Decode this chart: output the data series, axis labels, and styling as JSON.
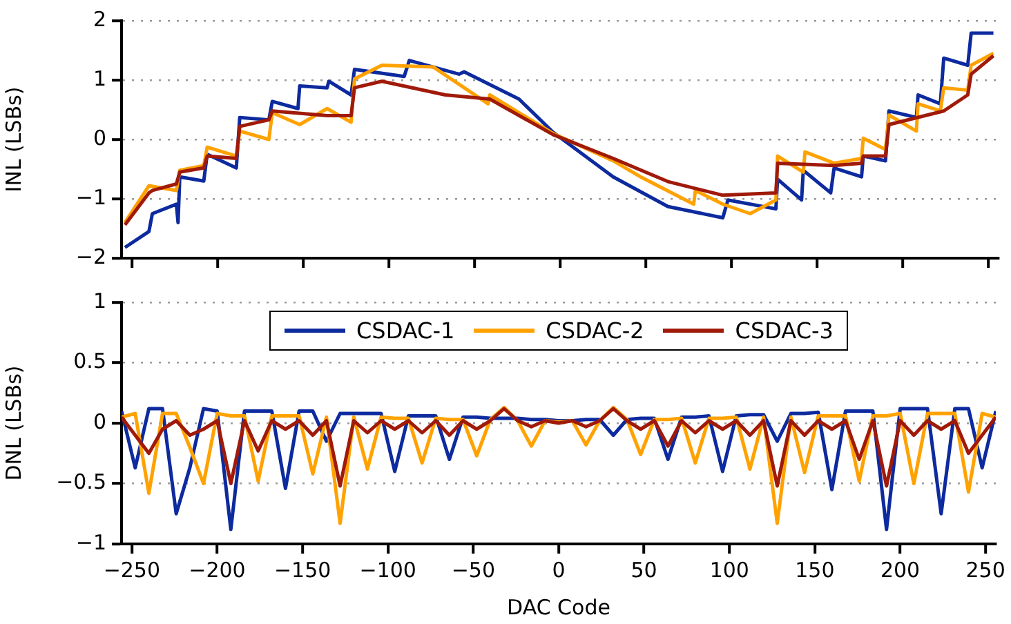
{
  "chart_data": [
    {
      "type": "line",
      "ylabel": "INL (LSBs)",
      "xlim": [
        -256,
        256
      ],
      "xticks": [
        -250,
        -200,
        -150,
        -100,
        -50,
        0,
        50,
        100,
        150,
        200,
        250
      ],
      "ylim": [
        -2,
        2
      ],
      "yticks": [
        -2,
        -1,
        0,
        1,
        2
      ],
      "grid": "y",
      "tick_labels": "y",
      "marker": "none",
      "series": [
        {
          "color": "#0d2a9e",
          "x": [
            -254,
            -240,
            -238,
            -224,
            -223,
            -222,
            -208,
            -206,
            -189,
            -187,
            -170,
            -168,
            -153,
            -152,
            -136,
            -135,
            -122,
            -120,
            -91,
            -88,
            -59,
            -56,
            -24,
            -4,
            31,
            63,
            95,
            98,
            126,
            127,
            141,
            142,
            158,
            160,
            176,
            177,
            190,
            192,
            208,
            209,
            222,
            224,
            238,
            240,
            253
          ],
          "values": [
            -1.82,
            -1.55,
            -1.25,
            -1.09,
            -1.4,
            -0.63,
            -0.7,
            -0.25,
            -0.48,
            0.37,
            0.33,
            0.64,
            0.52,
            0.9,
            0.87,
            0.98,
            0.75,
            1.18,
            1.06,
            1.33,
            1.1,
            1.14,
            0.68,
            0.12,
            -0.63,
            -1.13,
            -1.32,
            -1.02,
            -1.17,
            -0.67,
            -1.02,
            -0.52,
            -0.9,
            -0.48,
            -0.63,
            -0.28,
            -0.36,
            0.48,
            0.37,
            0.75,
            0.6,
            1.37,
            1.25,
            1.79,
            1.79
          ]
        },
        {
          "color": "#ffa200",
          "x": [
            -254,
            -240,
            -224,
            -222,
            -208,
            -206,
            -189,
            -187,
            -170,
            -168,
            -152,
            -136,
            -122,
            -120,
            -104,
            -74,
            -42,
            -41,
            -4,
            31,
            47,
            78,
            79,
            95,
            111,
            126,
            127,
            142,
            143,
            160,
            176,
            177,
            190,
            192,
            208,
            209,
            222,
            224,
            238,
            240,
            253
          ],
          "values": [
            -1.4,
            -0.78,
            -0.86,
            -0.52,
            -0.44,
            -0.13,
            -0.28,
            0.14,
            0,
            0.45,
            0.25,
            0.52,
            0.29,
            1.02,
            1.25,
            1.22,
            0.6,
            0.75,
            0.1,
            -0.36,
            -0.63,
            -1.09,
            -0.86,
            -1.09,
            -1.25,
            -1.02,
            -0.28,
            -0.55,
            -0.21,
            -0.4,
            -0.32,
            0.02,
            -0.17,
            0.41,
            0.14,
            0.6,
            0.48,
            0.87,
            0.83,
            1.25,
            1.45
          ]
        },
        {
          "color": "#a01a0a",
          "x": [
            -254,
            -240,
            -238,
            -224,
            -222,
            -208,
            -206,
            -189,
            -187,
            -170,
            -168,
            -136,
            -122,
            -120,
            -104,
            -67,
            -41,
            -4,
            31,
            63,
            95,
            126,
            127,
            160,
            176,
            177,
            190,
            192,
            224,
            238,
            240,
            253
          ],
          "values": [
            -1.44,
            -0.9,
            -0.86,
            -0.75,
            -0.55,
            -0.48,
            -0.28,
            -0.32,
            0.22,
            0.33,
            0.48,
            0.4,
            0.4,
            0.87,
            0.98,
            0.75,
            0.68,
            0.08,
            -0.32,
            -0.71,
            -0.94,
            -0.9,
            -0.4,
            -0.44,
            -0.4,
            -0.28,
            -0.28,
            0.25,
            0.48,
            0.75,
            1.1,
            1.41
          ]
        }
      ]
    },
    {
      "type": "line",
      "xlabel": "DAC Code",
      "ylabel": "DNL (LSBs)",
      "xlim": [
        -256,
        256
      ],
      "xticks": [
        -250,
        -200,
        -150,
        -100,
        -50,
        0,
        50,
        100,
        150,
        200,
        250
      ],
      "ylim": [
        -1,
        1
      ],
      "yticks": [
        -1,
        -0.5,
        0,
        0.5,
        1
      ],
      "grid": "y",
      "legend": "top",
      "marker": "none",
      "x": [
        -256,
        -248,
        -240,
        -232,
        -224,
        -216,
        -208,
        -200,
        -192,
        -184,
        -176,
        -168,
        -160,
        -152,
        -144,
        -136,
        -128,
        -120,
        -112,
        -104,
        -96,
        -88,
        -80,
        -72,
        -64,
        -56,
        -48,
        -40,
        -32,
        -24,
        -16,
        -8,
        0,
        8,
        16,
        24,
        32,
        40,
        48,
        56,
        64,
        72,
        80,
        88,
        96,
        104,
        112,
        120,
        128,
        136,
        144,
        152,
        160,
        168,
        176,
        184,
        192,
        200,
        208,
        216,
        224,
        232,
        240,
        248,
        256
      ],
      "series": [
        {
          "name": "CSDAC-1",
          "color": "#0d2a9e",
          "values": [
            0.1,
            -0.37,
            0.12,
            0.12,
            -0.75,
            -0.37,
            0.12,
            0.1,
            -0.88,
            0.1,
            0.1,
            0.1,
            -0.54,
            0.1,
            0.1,
            -0.15,
            0.08,
            0.08,
            0.08,
            0.08,
            -0.4,
            0.06,
            0.06,
            0.06,
            -0.3,
            0.05,
            0.05,
            0.04,
            0.04,
            0.04,
            0.03,
            0.03,
            0.02,
            0.02,
            0.03,
            0.03,
            -0.1,
            0.03,
            0.04,
            0.04,
            -0.3,
            0.05,
            0.05,
            0.06,
            -0.4,
            0.06,
            0.07,
            0.07,
            -0.15,
            0.08,
            0.08,
            0.09,
            -0.55,
            0.1,
            0.1,
            0.1,
            -0.88,
            0.12,
            0.12,
            0.12,
            -0.75,
            0.12,
            0.12,
            -0.37,
            0.1
          ]
        },
        {
          "name": "CSDAC-2",
          "color": "#ffa200",
          "values": [
            0.05,
            0.08,
            -0.58,
            0.08,
            0.08,
            -0.2,
            -0.5,
            0.08,
            0.06,
            0.06,
            -0.48,
            0.06,
            0.06,
            0.06,
            -0.42,
            0.05,
            -0.83,
            0.05,
            -0.38,
            0.05,
            0.04,
            0.04,
            -0.33,
            0.04,
            0.03,
            0.03,
            -0.27,
            0.03,
            0.13,
            0.02,
            -0.19,
            0.02,
            0.01,
            0.02,
            -0.18,
            0.02,
            0.13,
            0.03,
            -0.26,
            0.03,
            0.03,
            0.04,
            -0.33,
            0.04,
            0.04,
            0.05,
            -0.38,
            0.05,
            -0.83,
            0.05,
            -0.41,
            0.06,
            0.06,
            0.06,
            -0.48,
            0.06,
            0.06,
            0.08,
            -0.5,
            0.08,
            0.08,
            0.08,
            -0.57,
            0.08,
            0.05
          ]
        },
        {
          "name": "CSDAC-3",
          "color": "#a01a0a",
          "values": [
            0.05,
            -0.1,
            -0.25,
            -0.05,
            0.02,
            -0.1,
            -0.05,
            0.02,
            -0.5,
            0.02,
            -0.23,
            0.02,
            -0.05,
            0.02,
            -0.1,
            0.02,
            -0.52,
            0.02,
            -0.08,
            0.02,
            -0.05,
            0.02,
            -0.08,
            0.02,
            -0.1,
            0.02,
            -0.05,
            0.02,
            0.12,
            0.02,
            -0.03,
            0.02,
            0,
            0.02,
            -0.03,
            0.02,
            0.12,
            0.02,
            -0.05,
            0.02,
            -0.19,
            0.02,
            -0.08,
            0.02,
            -0.05,
            0.02,
            -0.1,
            0.02,
            -0.52,
            0.02,
            -0.1,
            0.02,
            -0.05,
            0.02,
            -0.3,
            0.02,
            -0.52,
            0.02,
            -0.1,
            0.02,
            -0.05,
            0.02,
            -0.25,
            -0.1,
            0.05
          ]
        }
      ]
    }
  ]
}
